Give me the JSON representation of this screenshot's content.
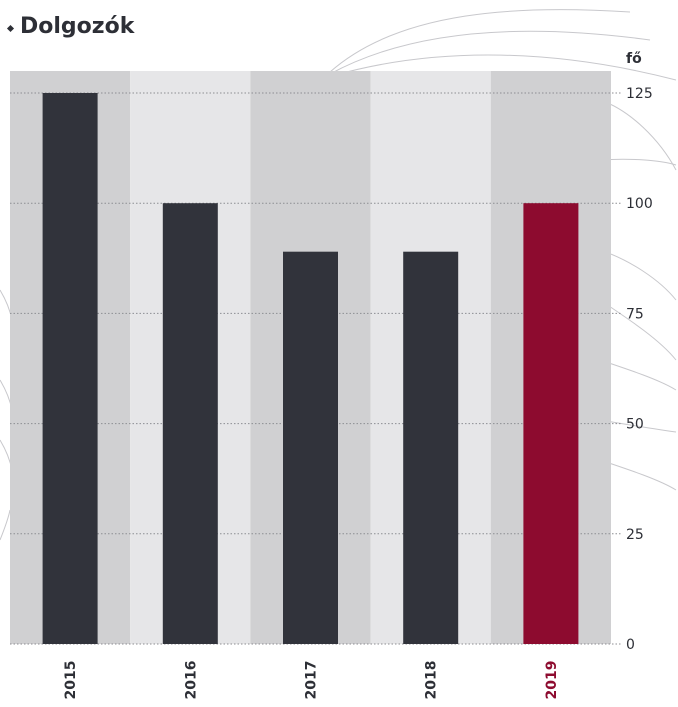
{
  "chart_data": {
    "type": "bar",
    "title": "Dolgozók",
    "unit": "fő",
    "categories": [
      "2015",
      "2016",
      "2017",
      "2018",
      "2019"
    ],
    "values": [
      125,
      100,
      89,
      89,
      100
    ],
    "ylim": [
      0,
      125
    ],
    "yticks": [
      0,
      25,
      50,
      75,
      100,
      125
    ],
    "highlight_category": "2019",
    "grid": true,
    "y_axis_position": "right"
  },
  "colors": {
    "bar": "#31333b",
    "highlight": "#8d0b2f",
    "band_dark": "#d0d0d2",
    "band_light": "#e6e6e8",
    "text": "#2d2f36",
    "deco_lines": "#c8c8cc"
  }
}
